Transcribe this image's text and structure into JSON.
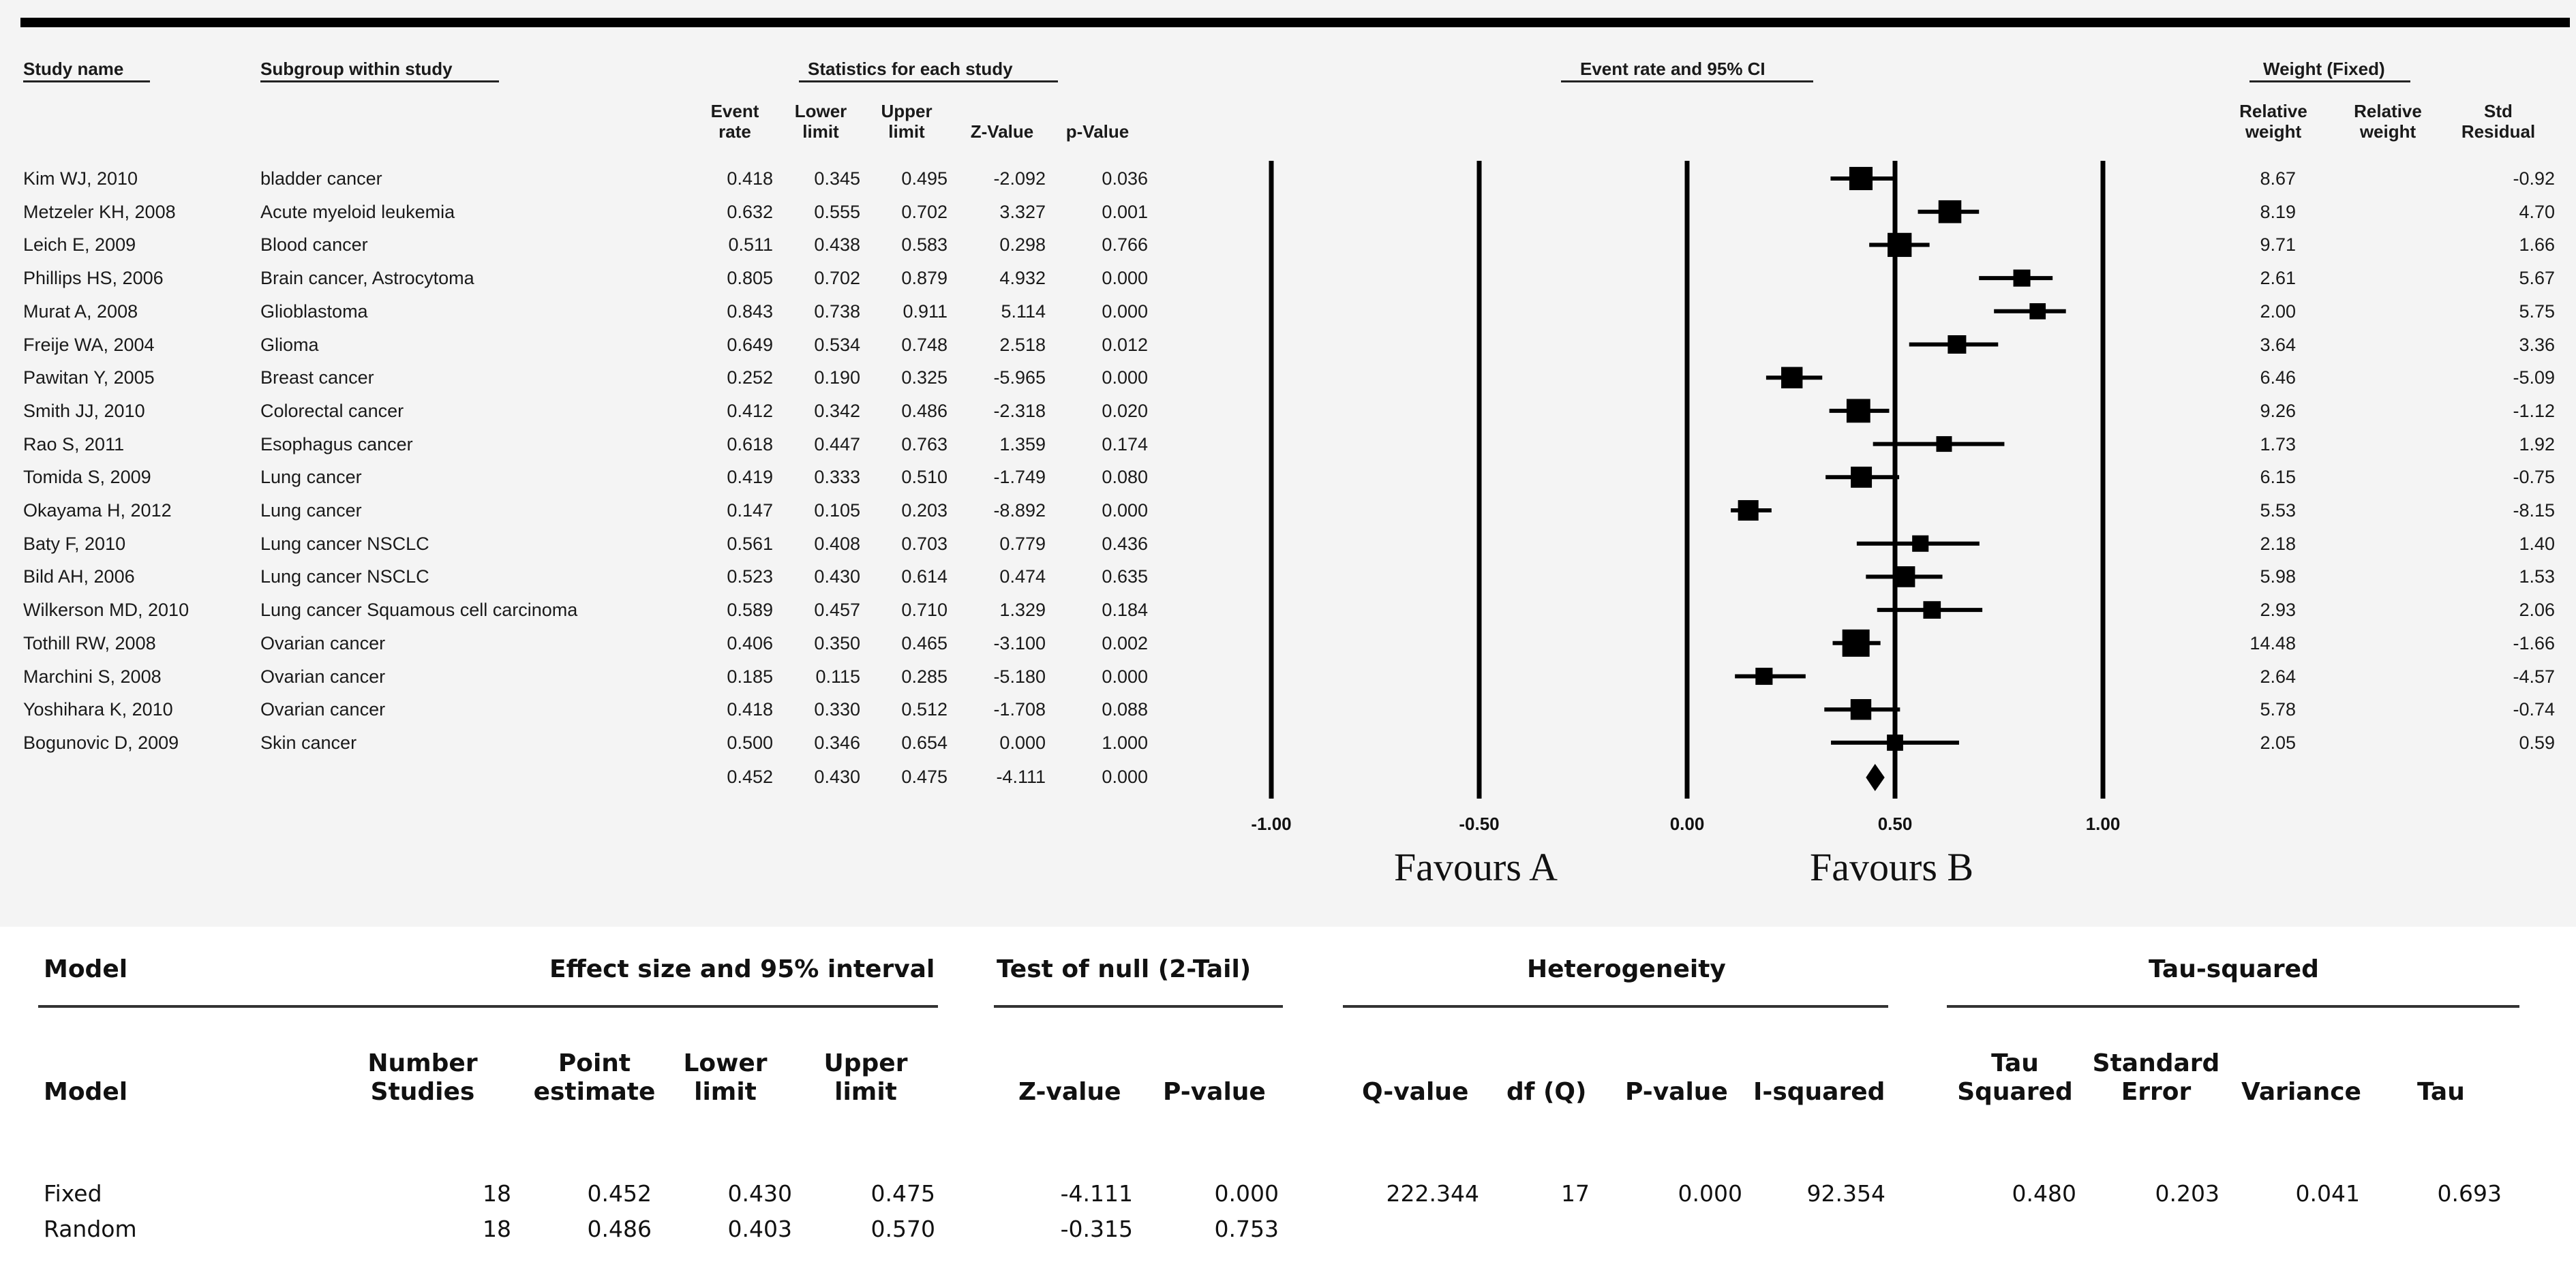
{
  "headers": {
    "study_name": "Study name",
    "subgroup": "Subgroup within study",
    "statistics": "Statistics for each study",
    "event_rate_ci": "Event rate and 95% CI",
    "weight": "Weight (Fixed)",
    "event_rate": [
      "Event",
      "rate"
    ],
    "lower_limit": [
      "Lower",
      "limit"
    ],
    "upper_limit": [
      "Upper",
      "limit"
    ],
    "z_value": "Z-Value",
    "p_value": "p-Value",
    "relative_weight": [
      "Relative",
      "weight"
    ],
    "relative_weight2": [
      "Relative",
      "weight"
    ],
    "std_residual": [
      "Std",
      "Residual"
    ]
  },
  "studies": [
    {
      "name": "Kim WJ, 2010",
      "subgroup": "bladder cancer",
      "event_rate": "0.418",
      "lower": "0.345",
      "upper": "0.495",
      "z": "-2.092",
      "p": "0.036",
      "rel_weight": "8.67",
      "std_resid": "-0.92"
    },
    {
      "name": "Metzeler KH, 2008",
      "subgroup": "Acute myeloid leukemia",
      "event_rate": "0.632",
      "lower": "0.555",
      "upper": "0.702",
      "z": "3.327",
      "p": "0.001",
      "rel_weight": "8.19",
      "std_resid": "4.70"
    },
    {
      "name": "Leich E, 2009",
      "subgroup": "Blood cancer",
      "event_rate": "0.511",
      "lower": "0.438",
      "upper": "0.583",
      "z": "0.298",
      "p": "0.766",
      "rel_weight": "9.71",
      "std_resid": "1.66"
    },
    {
      "name": "Phillips HS, 2006",
      "subgroup": "Brain cancer, Astrocytoma",
      "event_rate": "0.805",
      "lower": "0.702",
      "upper": "0.879",
      "z": "4.932",
      "p": "0.000",
      "rel_weight": "2.61",
      "std_resid": "5.67"
    },
    {
      "name": "Murat A, 2008",
      "subgroup": "Glioblastoma",
      "event_rate": "0.843",
      "lower": "0.738",
      "upper": "0.911",
      "z": "5.114",
      "p": "0.000",
      "rel_weight": "2.00",
      "std_resid": "5.75"
    },
    {
      "name": "Freije WA, 2004",
      "subgroup": "Glioma",
      "event_rate": "0.649",
      "lower": "0.534",
      "upper": "0.748",
      "z": "2.518",
      "p": "0.012",
      "rel_weight": "3.64",
      "std_resid": "3.36"
    },
    {
      "name": "Pawitan Y, 2005",
      "subgroup": "Breast cancer",
      "event_rate": "0.252",
      "lower": "0.190",
      "upper": "0.325",
      "z": "-5.965",
      "p": "0.000",
      "rel_weight": "6.46",
      "std_resid": "-5.09"
    },
    {
      "name": "Smith JJ, 2010",
      "subgroup": "Colorectal cancer",
      "event_rate": "0.412",
      "lower": "0.342",
      "upper": "0.486",
      "z": "-2.318",
      "p": "0.020",
      "rel_weight": "9.26",
      "std_resid": "-1.12"
    },
    {
      "name": "Rao S, 2011",
      "subgroup": "Esophagus cancer",
      "event_rate": "0.618",
      "lower": "0.447",
      "upper": "0.763",
      "z": "1.359",
      "p": "0.174",
      "rel_weight": "1.73",
      "std_resid": "1.92"
    },
    {
      "name": "Tomida S, 2009",
      "subgroup": "Lung cancer",
      "event_rate": "0.419",
      "lower": "0.333",
      "upper": "0.510",
      "z": "-1.749",
      "p": "0.080",
      "rel_weight": "6.15",
      "std_resid": "-0.75"
    },
    {
      "name": "Okayama H, 2012",
      "subgroup": "Lung cancer",
      "event_rate": "0.147",
      "lower": "0.105",
      "upper": "0.203",
      "z": "-8.892",
      "p": "0.000",
      "rel_weight": "5.53",
      "std_resid": "-8.15"
    },
    {
      "name": "Baty F, 2010",
      "subgroup": "Lung cancer NSCLC",
      "event_rate": "0.561",
      "lower": "0.408",
      "upper": "0.703",
      "z": "0.779",
      "p": "0.436",
      "rel_weight": "2.18",
      "std_resid": "1.40"
    },
    {
      "name": "Bild AH, 2006",
      "subgroup": "Lung cancer NSCLC",
      "event_rate": "0.523",
      "lower": "0.430",
      "upper": "0.614",
      "z": "0.474",
      "p": "0.635",
      "rel_weight": "5.98",
      "std_resid": "1.53"
    },
    {
      "name": "Wilkerson MD, 2010",
      "subgroup": "Lung cancer Squamous cell carcinoma",
      "event_rate": "0.589",
      "lower": "0.457",
      "upper": "0.710",
      "z": "1.329",
      "p": "0.184",
      "rel_weight": "2.93",
      "std_resid": "2.06"
    },
    {
      "name": "Tothill RW, 2008",
      "subgroup": "Ovarian cancer",
      "event_rate": "0.406",
      "lower": "0.350",
      "upper": "0.465",
      "z": "-3.100",
      "p": "0.002",
      "rel_weight": "14.48",
      "std_resid": "-1.66"
    },
    {
      "name": "Marchini S, 2008",
      "subgroup": "Ovarian cancer",
      "event_rate": "0.185",
      "lower": "0.115",
      "upper": "0.285",
      "z": "-5.180",
      "p": "0.000",
      "rel_weight": "2.64",
      "std_resid": "-4.57"
    },
    {
      "name": "Yoshihara K, 2010",
      "subgroup": "Ovarian cancer",
      "event_rate": "0.418",
      "lower": "0.330",
      "upper": "0.512",
      "z": "-1.708",
      "p": "0.088",
      "rel_weight": "5.78",
      "std_resid": "-0.74"
    },
    {
      "name": "Bogunovic D, 2009",
      "subgroup": "Skin cancer",
      "event_rate": "0.500",
      "lower": "0.346",
      "upper": "0.654",
      "z": "0.000",
      "p": "1.000",
      "rel_weight": "2.05",
      "std_resid": "0.59"
    }
  ],
  "summary_row": {
    "event_rate": "0.452",
    "lower": "0.430",
    "upper": "0.475",
    "z": "-4.111",
    "p": "0.000"
  },
  "favours": {
    "a": "Favours A",
    "b": "Favours B"
  },
  "chart_data": {
    "type": "forest",
    "title": "Event rate and 95% CI",
    "xlim": [
      -1.0,
      1.0
    ],
    "vertical_lines": [
      -1.0,
      -0.5,
      0.0,
      0.5,
      1.0
    ],
    "ticks": [
      -1.0,
      -0.5,
      0.0,
      0.5,
      1.0
    ],
    "tick_labels": [
      "-1.00",
      "-0.50",
      "0.00",
      "0.50",
      "1.00"
    ],
    "reference_line": 0.5,
    "studies": [
      {
        "name": "Kim WJ, 2010",
        "value": 0.418,
        "lower": 0.345,
        "upper": 0.495,
        "weight": 8.67
      },
      {
        "name": "Metzeler KH, 2008",
        "value": 0.632,
        "lower": 0.555,
        "upper": 0.702,
        "weight": 8.19
      },
      {
        "name": "Leich E, 2009",
        "value": 0.511,
        "lower": 0.438,
        "upper": 0.583,
        "weight": 9.71
      },
      {
        "name": "Phillips HS, 2006",
        "value": 0.805,
        "lower": 0.702,
        "upper": 0.879,
        "weight": 2.61
      },
      {
        "name": "Murat A, 2008",
        "value": 0.843,
        "lower": 0.738,
        "upper": 0.911,
        "weight": 2.0
      },
      {
        "name": "Freije WA, 2004",
        "value": 0.649,
        "lower": 0.534,
        "upper": 0.748,
        "weight": 3.64
      },
      {
        "name": "Pawitan Y, 2005",
        "value": 0.252,
        "lower": 0.19,
        "upper": 0.325,
        "weight": 6.46
      },
      {
        "name": "Smith JJ, 2010",
        "value": 0.412,
        "lower": 0.342,
        "upper": 0.486,
        "weight": 9.26
      },
      {
        "name": "Rao S, 2011",
        "value": 0.618,
        "lower": 0.447,
        "upper": 0.763,
        "weight": 1.73
      },
      {
        "name": "Tomida S, 2009",
        "value": 0.419,
        "lower": 0.333,
        "upper": 0.51,
        "weight": 6.15
      },
      {
        "name": "Okayama H, 2012",
        "value": 0.147,
        "lower": 0.105,
        "upper": 0.203,
        "weight": 5.53
      },
      {
        "name": "Baty F, 2010",
        "value": 0.561,
        "lower": 0.408,
        "upper": 0.703,
        "weight": 2.18
      },
      {
        "name": "Bild AH, 2006",
        "value": 0.523,
        "lower": 0.43,
        "upper": 0.614,
        "weight": 5.98
      },
      {
        "name": "Wilkerson MD, 2010",
        "value": 0.589,
        "lower": 0.457,
        "upper": 0.71,
        "weight": 2.93
      },
      {
        "name": "Tothill RW, 2008",
        "value": 0.406,
        "lower": 0.35,
        "upper": 0.465,
        "weight": 14.48
      },
      {
        "name": "Marchini S, 2008",
        "value": 0.185,
        "lower": 0.115,
        "upper": 0.285,
        "weight": 2.64
      },
      {
        "name": "Yoshihara K, 2010",
        "value": 0.418,
        "lower": 0.33,
        "upper": 0.512,
        "weight": 5.78
      },
      {
        "name": "Bogunovic D, 2009",
        "value": 0.5,
        "lower": 0.346,
        "upper": 0.654,
        "weight": 2.05
      }
    ],
    "summary": {
      "value": 0.452,
      "lower": 0.43,
      "upper": 0.475
    }
  },
  "model_table": {
    "group_headers": {
      "model": "Model",
      "effect": "Effect size and 95% interval",
      "test": "Test of null (2-Tail)",
      "heterogeneity": "Heterogeneity",
      "tau_squared": "Tau-squared"
    },
    "columns": {
      "model": "Model",
      "number_studies": [
        "Number",
        "Studies"
      ],
      "point_estimate": [
        "Point",
        "estimate"
      ],
      "lower_limit": [
        "Lower",
        "limit"
      ],
      "upper_limit": [
        "Upper",
        "limit"
      ],
      "z_value": "Z-value",
      "p_value": "P-value",
      "q_value": "Q-value",
      "df_q": "df (Q)",
      "het_p_value": "P-value",
      "i_squared": "I-squared",
      "tau_squared": [
        "Tau",
        "Squared"
      ],
      "standard_error": [
        "Standard",
        "Error"
      ],
      "variance": "Variance",
      "tau": "Tau"
    },
    "rows": [
      {
        "model": "Fixed",
        "number_studies": "18",
        "point_estimate": "0.452",
        "lower": "0.430",
        "upper": "0.475",
        "z": "-4.111",
        "p": "0.000",
        "q": "222.344",
        "df": "17",
        "het_p": "0.000",
        "i2": "92.354",
        "tau2": "0.480",
        "se": "0.203",
        "variance": "0.041",
        "tau": "0.693"
      },
      {
        "model": "Random",
        "number_studies": "18",
        "point_estimate": "0.486",
        "lower": "0.403",
        "upper": "0.570",
        "z": "-0.315",
        "p": "0.753",
        "q": "",
        "df": "",
        "het_p": "",
        "i2": "",
        "tau2": "",
        "se": "",
        "variance": "",
        "tau": ""
      }
    ]
  }
}
